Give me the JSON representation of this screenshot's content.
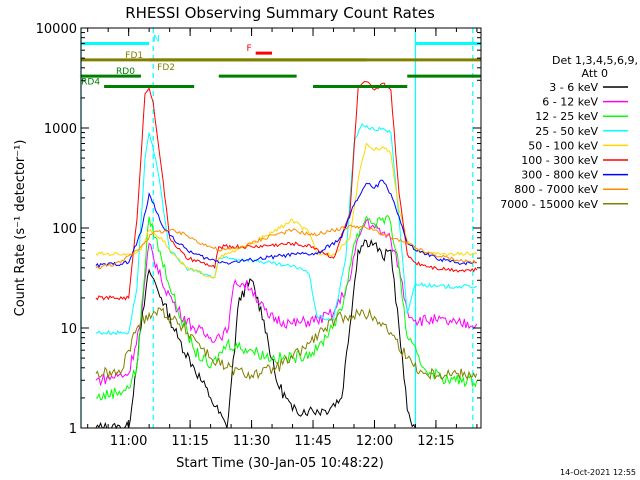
{
  "chart_data": {
    "type": "line",
    "title": "RHESSI Observing Summary Count Rates",
    "xlabel": "Start Time (30-Jan-05 10:48:22)",
    "ylabel": "Count Rate (s⁻¹ detector⁻¹)",
    "ylog": true,
    "ylim": [
      1,
      10000
    ],
    "xlim": [
      "10:48:22",
      "12:26:00"
    ],
    "x_tick_labels": [
      "11:00",
      "11:15",
      "11:30",
      "11:45",
      "12:00",
      "12:15"
    ],
    "x_tick_times": [
      "11:00",
      "11:15",
      "11:30",
      "11:45",
      "12:00",
      "12:15"
    ],
    "y_tick_labels": [
      "1",
      "10",
      "100",
      "1000",
      "10000"
    ],
    "y_tick_values": [
      1,
      10,
      100,
      1000,
      10000
    ],
    "legend_title_1": "Det 1,3,4,5,6,9,",
    "legend_title_2": "Att 0",
    "legend_position": "right",
    "timestamp": "14-Oct-2021 12:55",
    "series": [
      {
        "name": "3 - 6 keV",
        "color": "#000000",
        "x": [
          "10:52",
          "11:00",
          "11:03",
          "11:05",
          "11:08",
          "11:12",
          "11:16",
          "11:20",
          "11:24",
          "11:27",
          "11:30",
          "11:33",
          "11:36",
          "11:40",
          "11:44",
          "11:48",
          "11:52",
          "11:56",
          "11:58",
          "12:00",
          "12:02",
          "12:04",
          "12:06",
          "12:08",
          "12:10"
        ],
        "y": [
          1,
          1,
          10,
          38,
          20,
          8,
          4,
          2,
          1,
          20,
          30,
          12,
          3,
          1.5,
          1.5,
          1.5,
          2,
          60,
          75,
          70,
          50,
          60,
          10,
          1.5,
          1
        ]
      },
      {
        "name": "6 - 12 keV",
        "color": "#ff00ff",
        "x": [
          "10:52",
          "11:00",
          "11:03",
          "11:05",
          "11:08",
          "11:12",
          "11:16",
          "11:20",
          "11:24",
          "11:26",
          "11:30",
          "11:34",
          "11:40",
          "11:46",
          "11:50",
          "11:54",
          "11:56",
          "11:58",
          "12:00",
          "12:02",
          "12:04",
          "12:06",
          "12:08",
          "12:10",
          "12:15",
          "12:20",
          "12:25"
        ],
        "y": [
          3,
          3.5,
          12,
          70,
          30,
          15,
          10,
          8,
          9,
          30,
          25,
          13,
          11,
          12,
          14,
          30,
          80,
          120,
          100,
          90,
          75,
          40,
          15,
          12,
          12,
          11,
          11
        ]
      },
      {
        "name": "12 - 25 keV",
        "color": "#00ff00",
        "x": [
          "10:52",
          "11:00",
          "11:02",
          "11:05",
          "11:08",
          "11:12",
          "11:16",
          "11:20",
          "11:24",
          "11:30",
          "11:35",
          "11:40",
          "11:46",
          "11:52",
          "11:55",
          "11:58",
          "12:00",
          "12:02",
          "12:04",
          "12:06",
          "12:08",
          "12:12",
          "12:18",
          "12:25"
        ],
        "y": [
          2,
          2.5,
          4,
          130,
          50,
          15,
          6,
          4,
          7,
          6,
          5,
          5,
          6,
          15,
          70,
          130,
          110,
          125,
          110,
          40,
          8,
          4,
          3,
          3
        ]
      },
      {
        "name": "25 - 50 keV",
        "color": "#00ffff",
        "x": [
          "10:52",
          "11:00",
          "11:02",
          "11:04",
          "11:05",
          "11:07",
          "11:10",
          "11:14",
          "11:18",
          "11:21",
          "11:22",
          "11:30",
          "11:38",
          "11:42",
          "11:44",
          "11:46",
          "11:50",
          "11:53",
          "11:55",
          "11:57",
          "12:00",
          "12:02",
          "12:04",
          "12:06",
          "12:08",
          "12:10",
          "12:15",
          "12:20",
          "12:25"
        ],
        "y": [
          9,
          9,
          25,
          500,
          900,
          400,
          60,
          40,
          35,
          32,
          50,
          48,
          42,
          40,
          35,
          13,
          12,
          50,
          700,
          1100,
          950,
          1000,
          900,
          120,
          14,
          28,
          26,
          26,
          26
        ]
      },
      {
        "name": "50 - 100 keV",
        "color": "#ffd700",
        "x": [
          "10:52",
          "11:00",
          "11:03",
          "11:05",
          "11:08",
          "11:10",
          "11:14",
          "11:18",
          "11:21",
          "11:22",
          "11:30",
          "11:35",
          "11:40",
          "11:44",
          "11:46",
          "11:50",
          "11:54",
          "11:56",
          "11:58",
          "12:00",
          "12:02",
          "12:04",
          "12:06",
          "12:08",
          "12:10",
          "12:15",
          "12:20",
          "12:25"
        ],
        "y": [
          55,
          55,
          60,
          95,
          80,
          60,
          40,
          35,
          32,
          50,
          70,
          90,
          120,
          90,
          55,
          55,
          80,
          300,
          700,
          600,
          650,
          550,
          150,
          75,
          60,
          55,
          55,
          55
        ]
      },
      {
        "name": "100 - 300 keV",
        "color": "#ff0000",
        "x": [
          "10:52",
          "11:00",
          "11:02",
          "11:04",
          "11:05",
          "11:06",
          "11:08",
          "11:10",
          "11:14",
          "11:18",
          "11:21",
          "11:22",
          "11:30",
          "11:40",
          "11:45",
          "11:50",
          "11:54",
          "11:56",
          "11:58",
          "12:00",
          "12:01",
          "12:02",
          "12:04",
          "12:06",
          "12:08",
          "12:10",
          "12:15",
          "12:20",
          "12:25"
        ],
        "y": [
          20,
          20,
          120,
          2200,
          2500,
          1800,
          400,
          80,
          50,
          45,
          40,
          65,
          65,
          70,
          65,
          50,
          140,
          2500,
          2900,
          2400,
          2500,
          2800,
          2400,
          220,
          55,
          45,
          40,
          38,
          38
        ]
      },
      {
        "name": "300 - 800 keV",
        "color": "#0000ff",
        "x": [
          "10:52",
          "11:00",
          "11:03",
          "11:05",
          "11:08",
          "11:12",
          "11:16",
          "11:20",
          "11:24",
          "11:30",
          "11:36",
          "11:42",
          "11:46",
          "11:52",
          "11:55",
          "11:58",
          "12:00",
          "12:02",
          "12:04",
          "12:06",
          "12:08",
          "12:10",
          "12:15",
          "12:20",
          "12:25"
        ],
        "y": [
          42,
          45,
          90,
          220,
          110,
          70,
          55,
          48,
          45,
          48,
          52,
          55,
          55,
          80,
          170,
          280,
          250,
          300,
          220,
          130,
          70,
          60,
          50,
          45,
          45
        ]
      },
      {
        "name": "800 - 7000 keV",
        "color": "#ff8c00",
        "x": [
          "10:52",
          "10:58",
          "11:02",
          "11:06",
          "11:10",
          "11:14",
          "11:18",
          "11:22",
          "11:26",
          "11:30",
          "11:35",
          "11:40",
          "11:45",
          "11:50",
          "11:55",
          "11:58",
          "12:00",
          "12:04",
          "12:08",
          "12:12",
          "12:16",
          "12:20",
          "12:25"
        ],
        "y": [
          40,
          45,
          60,
          90,
          95,
          85,
          70,
          60,
          62,
          70,
          85,
          95,
          85,
          95,
          105,
          100,
          95,
          80,
          70,
          58,
          52,
          48,
          45
        ]
      },
      {
        "name": "7000 - 15000 keV",
        "color": "#808000",
        "x": [
          "10:52",
          "10:58",
          "11:00",
          "11:02",
          "11:05",
          "11:08",
          "11:12",
          "11:16",
          "11:20",
          "11:24",
          "11:28",
          "11:32",
          "11:36",
          "11:40",
          "11:44",
          "11:48",
          "11:52",
          "11:56",
          "12:00",
          "12:04",
          "12:08",
          "12:12",
          "12:16",
          "12:20",
          "12:25"
        ],
        "y": [
          3.5,
          3.5,
          6,
          10,
          14,
          15,
          11,
          8,
          5,
          4,
          3.5,
          3.5,
          4,
          5,
          7,
          10,
          13,
          14,
          13,
          9,
          5,
          3.5,
          3.5,
          3.5,
          3.5
        ]
      }
    ],
    "annotations": [
      {
        "label": "N",
        "color": "#00ffff",
        "segments": [
          [
            "10:48:22",
            "11:05"
          ],
          [
            "12:10",
            "12:26"
          ]
        ],
        "level": 7000
      },
      {
        "label": "F",
        "color": "#ff0000",
        "segments": [
          [
            "11:31",
            "11:35"
          ]
        ],
        "level": 5600
      },
      {
        "label": "FD1",
        "color": "#808000",
        "segments": [
          [
            "10:48:22",
            "11:05"
          ],
          [
            "11:05",
            "12:26"
          ]
        ],
        "level": 4800
      },
      {
        "label": "FD2",
        "color": "#808000",
        "segments": [
          [
            "11:05",
            "11:58"
          ]
        ],
        "level": 4800
      },
      {
        "label": "RD0",
        "color": "#008000",
        "segments": [
          [
            "10:48:22",
            "11:03"
          ],
          [
            "11:22",
            "11:41"
          ],
          [
            "12:08",
            "12:26"
          ]
        ],
        "level": 3300
      },
      {
        "label": "RD4",
        "color": "#008000",
        "segments": [
          [
            "10:54",
            "11:16"
          ],
          [
            "11:45",
            "12:08"
          ]
        ],
        "level": 2600
      }
    ],
    "vertical_markers": [
      {
        "time": "10:48:22",
        "color": "#00ffff",
        "style": "solid"
      },
      {
        "time": "11:06",
        "color": "#00ffff",
        "style": "dashed"
      },
      {
        "time": "12:10",
        "color": "#00ffff",
        "style": "solid"
      },
      {
        "time": "12:24",
        "color": "#00ffff",
        "style": "dashed"
      }
    ]
  }
}
